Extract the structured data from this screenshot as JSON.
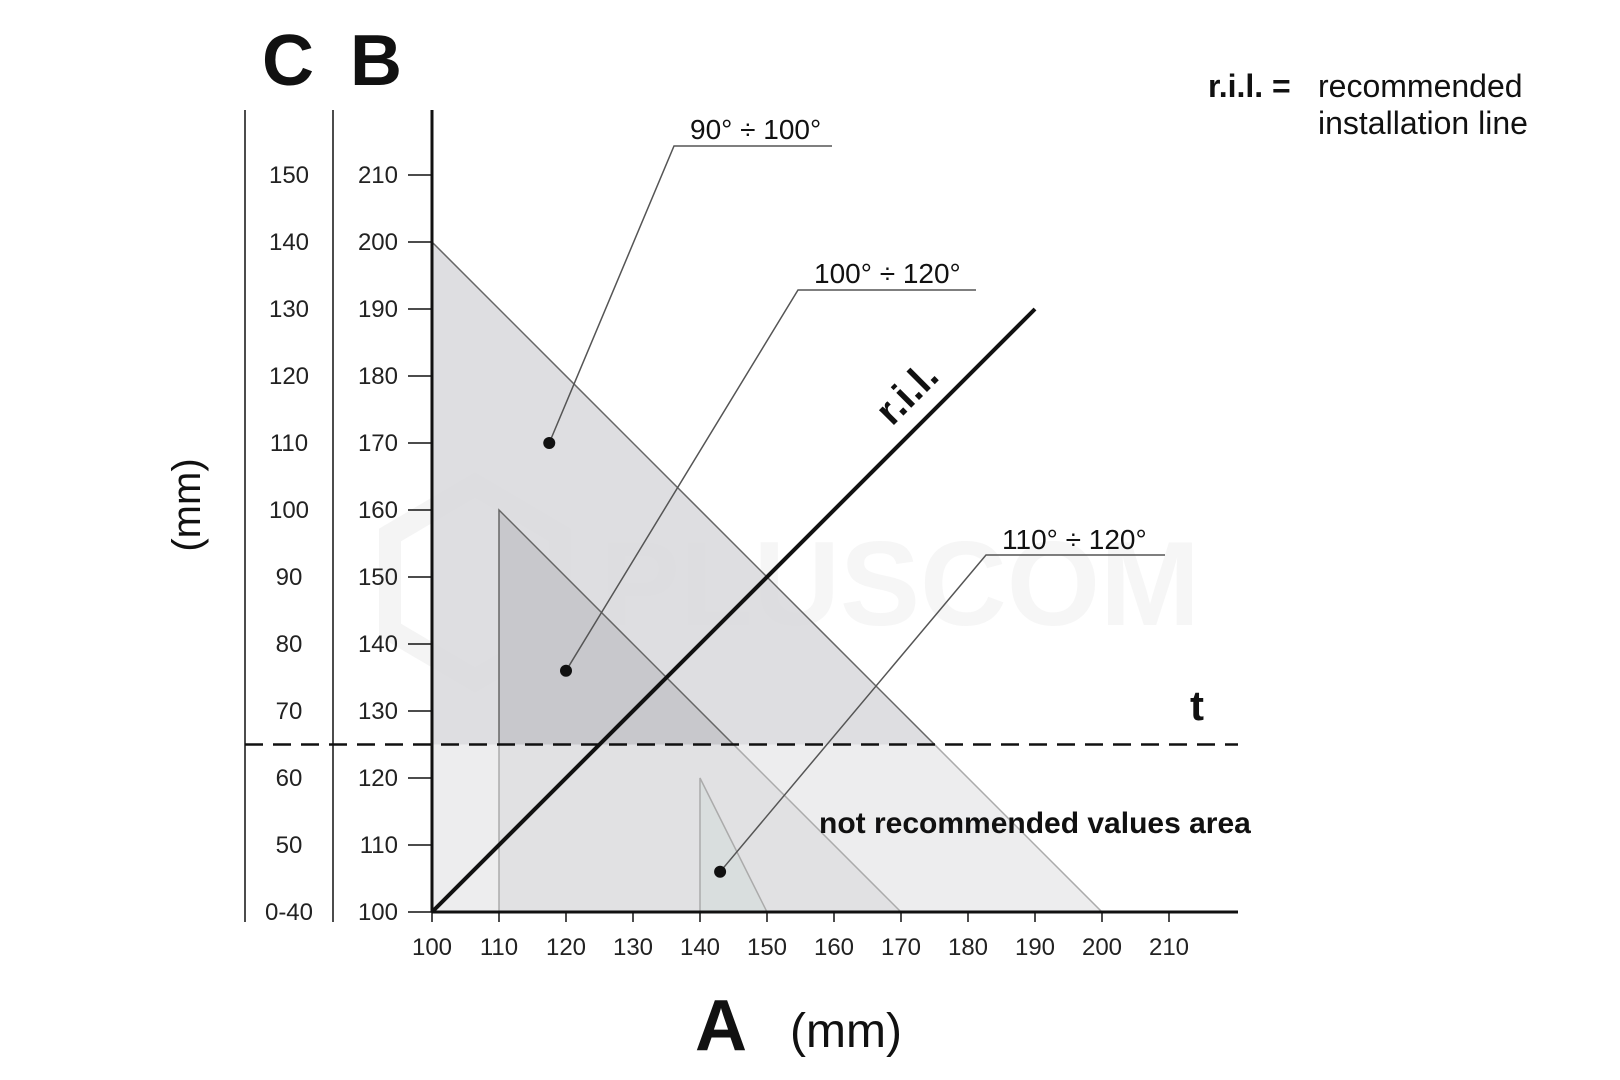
{
  "chart_data": {
    "type": "diagram",
    "axis_letters": {
      "a": "A",
      "b": "B",
      "c": "C"
    },
    "unit_label": "(mm)",
    "x_ticks": [
      "100",
      "110",
      "120",
      "130",
      "140",
      "150",
      "160",
      "170",
      "180",
      "190",
      "200",
      "210"
    ],
    "b_ticks": [
      "100",
      "110",
      "120",
      "130",
      "140",
      "150",
      "160",
      "170",
      "180",
      "190",
      "200",
      "210"
    ],
    "c_ticks": [
      "0-40",
      "50",
      "60",
      "70",
      "80",
      "90",
      "100",
      "110",
      "120",
      "130",
      "140",
      "150"
    ],
    "x_range": [
      100,
      220
    ],
    "b_range": [
      100,
      220
    ],
    "regions": [
      {
        "label": "90° ÷ 100°",
        "vertices": [
          [
            100,
            100
          ],
          [
            100,
            200
          ],
          [
            200,
            100
          ]
        ],
        "fill": "#d8d8dc"
      },
      {
        "label": "100° ÷ 120°",
        "vertices": [
          [
            110,
            100
          ],
          [
            110,
            160
          ],
          [
            170,
            100
          ]
        ],
        "fill": "#c4c4c8"
      },
      {
        "label": "110° ÷ 120°",
        "vertices": [
          [
            140,
            100
          ],
          [
            140,
            120
          ],
          [
            150,
            100
          ]
        ],
        "fill": "#b8c2c2"
      }
    ],
    "recommended_line": {
      "label": "r.i.l.",
      "from": [
        100,
        100
      ],
      "to": [
        190,
        190
      ]
    },
    "threshold": {
      "label": "t",
      "b_value": 125,
      "c_value": 65
    },
    "not_recommended_label": "not recommended values area",
    "legend": {
      "key": "r.i.l. =",
      "line1": "recommended",
      "line2": "installation line"
    },
    "watermark": "PLUSCOM",
    "colors": {
      "ink": "#111111",
      "leader": "#555555",
      "lowband": "#ededf0"
    }
  }
}
